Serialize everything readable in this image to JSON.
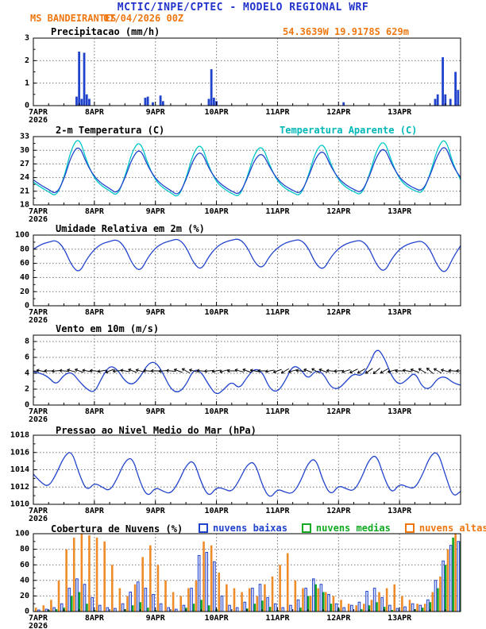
{
  "header": {
    "title": "MCTIC/INPE/CPTEC - MODELO REGIONAL WRF",
    "station": "MS BANDEIRANTES",
    "run": "07/04/2026 00Z",
    "location": "54.3639W 19.9178S 629m"
  },
  "colors": {
    "header_blue": "#2233cc",
    "line_blue": "#2244cc",
    "apparent_cyan": "#00c8c8",
    "orange": "#ee7711",
    "cloud_high_orange": "#ef8c2a",
    "cloud_mid_green": "#11aa22",
    "axis_black": "#000000"
  },
  "x_axis": {
    "days": [
      "7APR",
      "8APR",
      "9APR",
      "10APR",
      "11APR",
      "12APR",
      "13APR"
    ],
    "year": "2026",
    "hours_total": 168
  },
  "chart_data": [
    {
      "type": "bar",
      "title": "Precipitacao (mm/h)",
      "ylim": [
        0,
        3
      ],
      "yticks": [
        0,
        1,
        2,
        3
      ],
      "series": [
        {
          "name": "precipitacao",
          "kind": "bar-sparse",
          "color": "#2244cc",
          "x": [
            17,
            18,
            19,
            20,
            21,
            22,
            44,
            45,
            47,
            50,
            51,
            69,
            70,
            71,
            72,
            122,
            158,
            159,
            161,
            162,
            164,
            166,
            167
          ],
          "values": [
            0.4,
            2.4,
            0.3,
            2.35,
            0.5,
            0.3,
            0.35,
            0.4,
            0.15,
            0.45,
            0.2,
            0.3,
            1.62,
            0.35,
            0.2,
            0.15,
            0.3,
            0.5,
            2.15,
            0.5,
            0.3,
            1.5,
            0.7
          ]
        }
      ]
    },
    {
      "type": "line",
      "title": "2-m Temperatura (C)",
      "ylim": [
        18,
        33
      ],
      "yticks": [
        18,
        21,
        24,
        27,
        30,
        33
      ],
      "x_step_hours": 3,
      "series": [
        {
          "name": "Temperatura Aparente (C)",
          "kind": "line",
          "color": "#00c8c8",
          "values": [
            23.0,
            21.8,
            20.9,
            19.8,
            23.8,
            30.5,
            33.0,
            27.5,
            23.8,
            22.1,
            21.1,
            19.9,
            24.1,
            30.0,
            32.2,
            27.0,
            23.4,
            21.7,
            20.7,
            19.5,
            23.7,
            29.6,
            31.6,
            26.4,
            23.0,
            21.5,
            20.5,
            19.7,
            23.9,
            29.4,
            31.2,
            26.6,
            23.2,
            21.6,
            20.7,
            19.9,
            24.1,
            29.8,
            31.8,
            26.9,
            23.4,
            21.8,
            20.9,
            20.1,
            24.3,
            30.2,
            32.4,
            27.3,
            23.6,
            22.0,
            21.1,
            20.5,
            24.7,
            30.6,
            32.9,
            27.0,
            23.5
          ]
        },
        {
          "name": "2-m Temperatura (C)",
          "kind": "line",
          "color": "#2244cc",
          "values": [
            23.5,
            22.3,
            21.4,
            20.3,
            23.5,
            29.0,
            31.2,
            27.0,
            24.2,
            22.6,
            21.6,
            20.4,
            23.8,
            28.5,
            30.5,
            26.5,
            23.8,
            22.2,
            21.2,
            20.0,
            23.4,
            28.2,
            30.0,
            26.0,
            23.5,
            22.0,
            21.0,
            20.2,
            23.6,
            28.0,
            29.6,
            26.2,
            23.6,
            22.1,
            21.2,
            20.4,
            23.8,
            28.4,
            30.2,
            26.4,
            23.8,
            22.3,
            21.4,
            20.6,
            24.0,
            28.8,
            30.8,
            26.8,
            24.0,
            22.5,
            21.6,
            21.0,
            24.4,
            29.2,
            31.3,
            26.5,
            24.0
          ]
        }
      ]
    },
    {
      "type": "line",
      "title": "Umidade Relativa em 2m (%)",
      "ylim": [
        0,
        100
      ],
      "yticks": [
        0,
        20,
        40,
        60,
        80,
        100
      ],
      "x_step_hours": 3,
      "series": [
        {
          "name": "umidade relativa",
          "kind": "line",
          "color": "#2244cc",
          "values": [
            80,
            87,
            90,
            93,
            82,
            57,
            46,
            66,
            80,
            88,
            91,
            94,
            83,
            58,
            48,
            68,
            82,
            89,
            92,
            95,
            84,
            60,
            50,
            70,
            83,
            90,
            93,
            95,
            84,
            61,
            52,
            71,
            82,
            89,
            92,
            94,
            83,
            59,
            50,
            69,
            81,
            88,
            91,
            93,
            82,
            57,
            47,
            67,
            80,
            87,
            90,
            92,
            80,
            55,
            45,
            68,
            85
          ]
        }
      ]
    },
    {
      "type": "line",
      "title": "Vento em 10m (m/s)",
      "ylim": [
        0,
        8.8
      ],
      "yticks": [
        0,
        2,
        4,
        6,
        8
      ],
      "x_step_hours": 3,
      "series": [
        {
          "name": "velocidade do vento",
          "kind": "line",
          "color": "#2244cc",
          "values": [
            4.2,
            4.0,
            3.5,
            2.5,
            3.8,
            4.2,
            3.0,
            2.0,
            1.5,
            3.5,
            5.0,
            4.5,
            3.0,
            2.5,
            3.5,
            5.2,
            5.5,
            4.0,
            2.0,
            1.5,
            2.5,
            4.5,
            4.2,
            2.5,
            1.2,
            2.0,
            3.0,
            2.0,
            3.5,
            4.6,
            4.2,
            2.0,
            1.6,
            3.0,
            5.0,
            4.6,
            3.2,
            4.4,
            4.0,
            2.2,
            2.0,
            3.0,
            4.0,
            3.6,
            5.0,
            7.3,
            6.0,
            3.5,
            2.5,
            3.2,
            4.2,
            2.2,
            2.0,
            3.4,
            3.6,
            2.8,
            2.5
          ]
        }
      ],
      "barbs": {
        "y": 4.3,
        "step_hours": 3,
        "dirs_deg": [
          185,
          190,
          180,
          175,
          185,
          195,
          200,
          190,
          185,
          170,
          160,
          175,
          190,
          200,
          195,
          185,
          180,
          175,
          185,
          200,
          210,
          195,
          185,
          175,
          170,
          165,
          180,
          195,
          200,
          190,
          180,
          170,
          160,
          150,
          165,
          185,
          200,
          210,
          200,
          185,
          175,
          165,
          155,
          150,
          145,
          140,
          150,
          165,
          180,
          190,
          200,
          210,
          220,
          210,
          195,
          185,
          180
        ]
      }
    },
    {
      "type": "line",
      "title": "Pressao ao Nivel Medio do Mar (hPa)",
      "ylim": [
        1010,
        1018
      ],
      "yticks": [
        1010,
        1012,
        1014,
        1016,
        1018
      ],
      "x_step_hours": 3,
      "series": [
        {
          "name": "pressao ao nivel medio do mar",
          "kind": "line",
          "color": "#2244cc",
          "values": [
            1013.5,
            1012.5,
            1012.0,
            1013.5,
            1015.5,
            1016.3,
            1013.5,
            1011.5,
            1012.5,
            1012.0,
            1011.5,
            1013.0,
            1015.0,
            1015.5,
            1012.5,
            1010.8,
            1012.0,
            1011.5,
            1011.2,
            1012.5,
            1014.5,
            1015.2,
            1012.5,
            1010.8,
            1012.0,
            1011.8,
            1011.4,
            1012.8,
            1014.6,
            1015.0,
            1012.2,
            1010.6,
            1011.8,
            1011.4,
            1011.2,
            1012.6,
            1014.8,
            1015.4,
            1012.6,
            1011.0,
            1012.2,
            1011.8,
            1011.5,
            1013.0,
            1015.2,
            1015.8,
            1013.0,
            1011.2,
            1012.4,
            1012.0,
            1011.8,
            1013.4,
            1015.6,
            1016.2,
            1013.4,
            1010.8,
            1011.5
          ]
        }
      ]
    },
    {
      "type": "bar",
      "title": "Cobertura de Nuvens (%)",
      "ylim": [
        0,
        100
      ],
      "yticks": [
        0,
        20,
        40,
        60,
        80,
        100
      ],
      "x_step_hours": 3,
      "series": [
        {
          "name": "nuvens baixas",
          "kind": "bar-outline",
          "color": "#2244cc",
          "values": [
            2,
            2,
            3,
            5,
            10,
            30,
            42,
            35,
            18,
            8,
            5,
            4,
            10,
            25,
            38,
            30,
            22,
            10,
            5,
            3,
            8,
            30,
            72,
            76,
            64,
            20,
            8,
            5,
            12,
            30,
            35,
            18,
            10,
            5,
            8,
            15,
            30,
            42,
            35,
            22,
            10,
            5,
            8,
            12,
            26,
            30,
            18,
            8,
            4,
            6,
            10,
            8,
            15,
            40,
            65,
            85,
            90
          ]
        },
        {
          "name": "nuvens medias",
          "kind": "bar",
          "color": "#11aa22",
          "values": [
            0,
            0,
            2,
            3,
            5,
            20,
            25,
            10,
            2,
            0,
            0,
            0,
            3,
            8,
            12,
            5,
            2,
            0,
            0,
            0,
            5,
            10,
            15,
            8,
            3,
            0,
            0,
            0,
            4,
            10,
            14,
            6,
            2,
            0,
            0,
            5,
            20,
            35,
            25,
            10,
            4,
            0,
            0,
            3,
            8,
            12,
            6,
            2,
            0,
            0,
            3,
            5,
            12,
            30,
            60,
            95,
            90
          ]
        },
        {
          "name": "nuvens altas",
          "kind": "bar",
          "color": "#ef8c2a",
          "values": [
            5,
            8,
            15,
            40,
            80,
            95,
            100,
            98,
            95,
            90,
            60,
            30,
            20,
            35,
            70,
            85,
            60,
            40,
            25,
            20,
            30,
            40,
            90,
            85,
            50,
            35,
            30,
            25,
            30,
            20,
            35,
            45,
            60,
            75,
            40,
            30,
            20,
            30,
            25,
            20,
            15,
            10,
            8,
            10,
            15,
            25,
            30,
            35,
            20,
            15,
            10,
            10,
            25,
            45,
            80,
            100,
            95
          ]
        }
      ]
    }
  ]
}
